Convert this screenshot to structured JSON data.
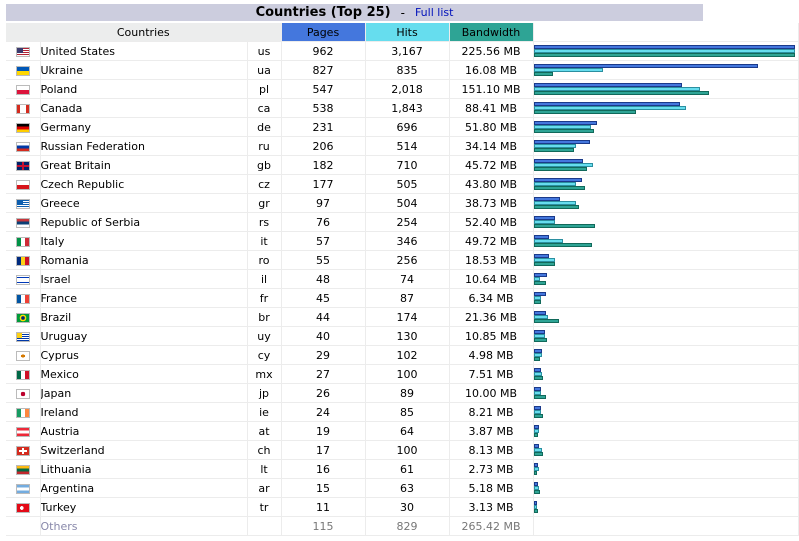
{
  "title": "Countries (Top 25)",
  "separator": "-",
  "full_list_label": "Full list",
  "columns": {
    "countries": "Countries",
    "pages": "Pages",
    "hits": "Hits",
    "bandwidth": "Bandwidth"
  },
  "colors": {
    "pages": "#4477dd",
    "hits": "#66ddee",
    "bandwidth": "#2ea495",
    "title_bg": "#cccdde"
  },
  "max": {
    "pages": 962,
    "hits": 3167,
    "bandwidth_mb": 225.56
  },
  "rows": [
    {
      "flag": "flag-us-icon",
      "name": "United States",
      "code": "us",
      "pages": "962",
      "hits": "3,167",
      "bandwidth": "225.56 MB",
      "p": 962,
      "h": 3167,
      "b": 225.56
    },
    {
      "flag": "flag-ua-icon",
      "name": "Ukraine",
      "code": "ua",
      "pages": "827",
      "hits": "835",
      "bandwidth": "16.08 MB",
      "p": 827,
      "h": 835,
      "b": 16.08
    },
    {
      "flag": "flag-pl-icon",
      "name": "Poland",
      "code": "pl",
      "pages": "547",
      "hits": "2,018",
      "bandwidth": "151.10 MB",
      "p": 547,
      "h": 2018,
      "b": 151.1
    },
    {
      "flag": "flag-ca-icon",
      "name": "Canada",
      "code": "ca",
      "pages": "538",
      "hits": "1,843",
      "bandwidth": "88.41 MB",
      "p": 538,
      "h": 1843,
      "b": 88.41
    },
    {
      "flag": "flag-de-icon",
      "name": "Germany",
      "code": "de",
      "pages": "231",
      "hits": "696",
      "bandwidth": "51.80 MB",
      "p": 231,
      "h": 696,
      "b": 51.8
    },
    {
      "flag": "flag-ru-icon",
      "name": "Russian Federation",
      "code": "ru",
      "pages": "206",
      "hits": "514",
      "bandwidth": "34.14 MB",
      "p": 206,
      "h": 514,
      "b": 34.14
    },
    {
      "flag": "flag-gb-icon",
      "name": "Great Britain",
      "code": "gb",
      "pages": "182",
      "hits": "710",
      "bandwidth": "45.72 MB",
      "p": 182,
      "h": 710,
      "b": 45.72
    },
    {
      "flag": "flag-cz-icon",
      "name": "Czech Republic",
      "code": "cz",
      "pages": "177",
      "hits": "505",
      "bandwidth": "43.80 MB",
      "p": 177,
      "h": 505,
      "b": 43.8
    },
    {
      "flag": "flag-gr-icon",
      "name": "Greece",
      "code": "gr",
      "pages": "97",
      "hits": "504",
      "bandwidth": "38.73 MB",
      "p": 97,
      "h": 504,
      "b": 38.73
    },
    {
      "flag": "flag-rs-icon",
      "name": "Republic of Serbia",
      "code": "rs",
      "pages": "76",
      "hits": "254",
      "bandwidth": "52.40 MB",
      "p": 76,
      "h": 254,
      "b": 52.4
    },
    {
      "flag": "flag-it-icon",
      "name": "Italy",
      "code": "it",
      "pages": "57",
      "hits": "346",
      "bandwidth": "49.72 MB",
      "p": 57,
      "h": 346,
      "b": 49.72
    },
    {
      "flag": "flag-ro-icon",
      "name": "Romania",
      "code": "ro",
      "pages": "55",
      "hits": "256",
      "bandwidth": "18.53 MB",
      "p": 55,
      "h": 256,
      "b": 18.53
    },
    {
      "flag": "flag-il-icon",
      "name": "Israel",
      "code": "il",
      "pages": "48",
      "hits": "74",
      "bandwidth": "10.64 MB",
      "p": 48,
      "h": 74,
      "b": 10.64
    },
    {
      "flag": "flag-fr-icon",
      "name": "France",
      "code": "fr",
      "pages": "45",
      "hits": "87",
      "bandwidth": "6.34 MB",
      "p": 45,
      "h": 87,
      "b": 6.34
    },
    {
      "flag": "flag-br-icon",
      "name": "Brazil",
      "code": "br",
      "pages": "44",
      "hits": "174",
      "bandwidth": "21.36 MB",
      "p": 44,
      "h": 174,
      "b": 21.36
    },
    {
      "flag": "flag-uy-icon",
      "name": "Uruguay",
      "code": "uy",
      "pages": "40",
      "hits": "130",
      "bandwidth": "10.85 MB",
      "p": 40,
      "h": 130,
      "b": 10.85
    },
    {
      "flag": "flag-cy-icon",
      "name": "Cyprus",
      "code": "cy",
      "pages": "29",
      "hits": "102",
      "bandwidth": "4.98 MB",
      "p": 29,
      "h": 102,
      "b": 4.98
    },
    {
      "flag": "flag-mx-icon",
      "name": "Mexico",
      "code": "mx",
      "pages": "27",
      "hits": "100",
      "bandwidth": "7.51 MB",
      "p": 27,
      "h": 100,
      "b": 7.51
    },
    {
      "flag": "flag-jp-icon",
      "name": "Japan",
      "code": "jp",
      "pages": "26",
      "hits": "89",
      "bandwidth": "10.00 MB",
      "p": 26,
      "h": 89,
      "b": 10.0
    },
    {
      "flag": "flag-ie-icon",
      "name": "Ireland",
      "code": "ie",
      "pages": "24",
      "hits": "85",
      "bandwidth": "8.21 MB",
      "p": 24,
      "h": 85,
      "b": 8.21
    },
    {
      "flag": "flag-at-icon",
      "name": "Austria",
      "code": "at",
      "pages": "19",
      "hits": "64",
      "bandwidth": "3.87 MB",
      "p": 19,
      "h": 64,
      "b": 3.87
    },
    {
      "flag": "flag-ch-icon",
      "name": "Switzerland",
      "code": "ch",
      "pages": "17",
      "hits": "100",
      "bandwidth": "8.13 MB",
      "p": 17,
      "h": 100,
      "b": 8.13
    },
    {
      "flag": "flag-lt-icon",
      "name": "Lithuania",
      "code": "lt",
      "pages": "16",
      "hits": "61",
      "bandwidth": "2.73 MB",
      "p": 16,
      "h": 61,
      "b": 2.73
    },
    {
      "flag": "flag-ar-icon",
      "name": "Argentina",
      "code": "ar",
      "pages": "15",
      "hits": "63",
      "bandwidth": "5.18 MB",
      "p": 15,
      "h": 63,
      "b": 5.18
    },
    {
      "flag": "flag-tr-icon",
      "name": "Turkey",
      "code": "tr",
      "pages": "11",
      "hits": "30",
      "bandwidth": "3.13 MB",
      "p": 11,
      "h": 30,
      "b": 3.13
    }
  ],
  "others": {
    "name": "Others",
    "pages": "115",
    "hits": "829",
    "bandwidth": "265.42 MB"
  }
}
